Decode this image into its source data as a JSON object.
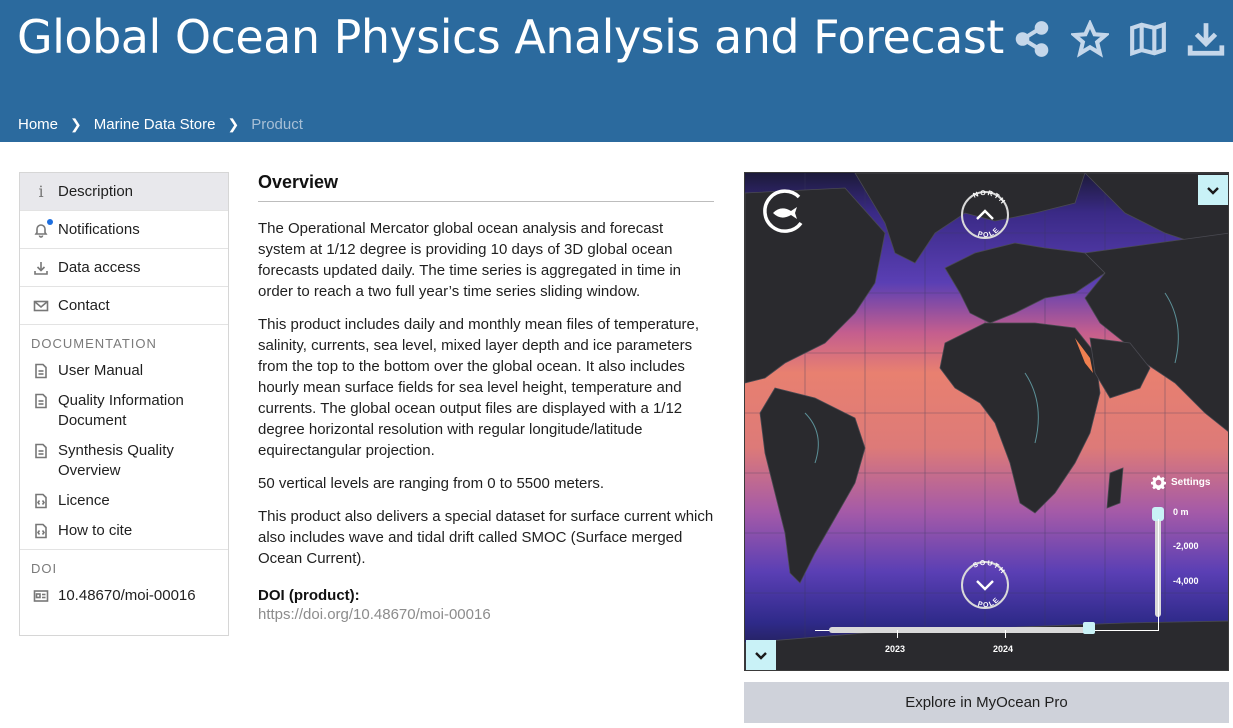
{
  "header": {
    "title": "Global Ocean Physics Analysis and Forecast",
    "icons": [
      "share-icon",
      "star-icon",
      "map-icon",
      "download-icon"
    ],
    "background_color": "#2b6a9e"
  },
  "breadcrumb": [
    {
      "label": "Home"
    },
    {
      "label": "Marine Data Store"
    },
    {
      "label": "Product"
    }
  ],
  "sidebar": {
    "items": [
      {
        "label": "Description",
        "icon": "info-icon",
        "active": true
      },
      {
        "label": "Notifications",
        "icon": "bell-icon"
      },
      {
        "label": "Data access",
        "icon": "download-icon"
      },
      {
        "label": "Contact",
        "icon": "mail-icon"
      }
    ],
    "documentation_heading": "DOCUMENTATION",
    "documentation": [
      {
        "label": "User Manual",
        "icon": "document-icon"
      },
      {
        "label": "Quality Information Document",
        "icon": "document-icon"
      },
      {
        "label": "Synthesis Quality Overview",
        "icon": "document-icon"
      },
      {
        "label": "Licence",
        "icon": "code-document-icon"
      },
      {
        "label": "How to cite",
        "icon": "code-document-icon"
      }
    ],
    "doi_heading": "DOI",
    "doi_value": "10.48670/moi-00016"
  },
  "main": {
    "title": "Overview",
    "paragraphs": [
      "The Operational Mercator global ocean analysis and forecast system at 1/12 degree is providing 10 days of 3D global ocean forecasts updated daily. The time series is aggregated in time in order to reach a two full year’s time series sliding window.",
      "This product includes daily and monthly mean files of temperature, salinity, currents, sea level, mixed layer depth and ice parameters from the top to the bottom over the global ocean. It also includes hourly mean surface fields for sea level height, temperature and currents. The global ocean output files are displayed with a 1/12 degree horizontal resolution with regular longitude/latitude equirectangular projection.",
      "50 vertical levels are ranging from 0 to 5500 meters.",
      "This product also delivers a special dataset for surface current which also includes wave and tidal drift called SMOC (Surface merged Ocean Current)."
    ],
    "doi_label": "DOI (product):",
    "doi_link": "https://doi.org/10.48670/moi-00016"
  },
  "map": {
    "north_pole_label": "NORTH POLE",
    "south_pole_label": "SOUTH POLE",
    "settings_label": "Settings",
    "depth_labels": [
      "0 m",
      "-2,000",
      "-4,000"
    ],
    "time_labels": [
      "2023",
      "2024"
    ],
    "accent_color": "#c9f2f7"
  },
  "explore_button": "Explore in MyOcean Pro"
}
